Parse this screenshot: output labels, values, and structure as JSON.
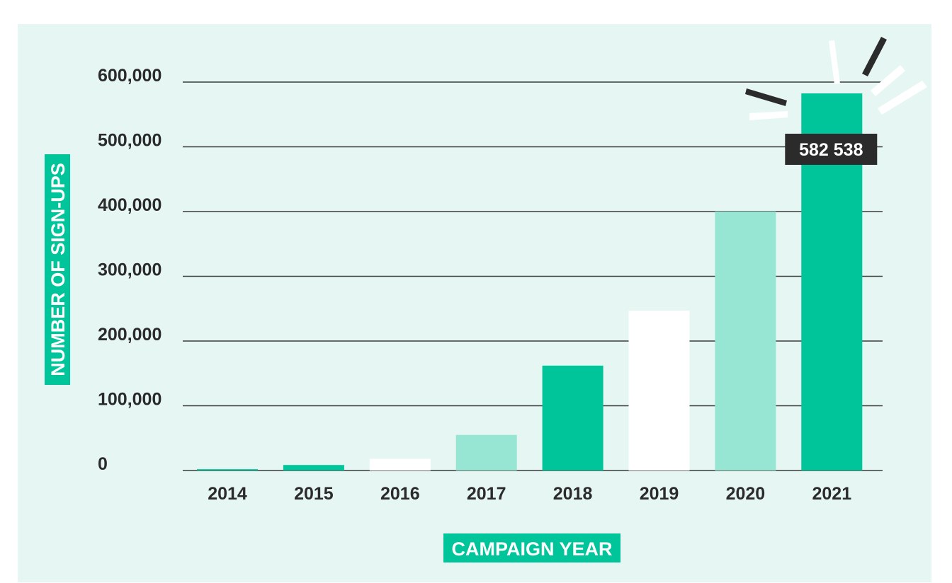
{
  "chart_data": {
    "type": "bar",
    "categories": [
      "2014",
      "2015",
      "2016",
      "2017",
      "2018",
      "2019",
      "2020",
      "2021"
    ],
    "values": [
      2000,
      8500,
      18000,
      55000,
      162000,
      247000,
      400000,
      582538
    ],
    "xlabel": "CAMPAIGN YEAR",
    "ylabel": "NUMBER OF SIGN-UPS",
    "ylim": [
      0,
      600000
    ],
    "yticks": [
      0,
      100000,
      200000,
      300000,
      400000,
      500000,
      600000
    ],
    "ytick_labels": [
      "0",
      "100,000",
      "200,000",
      "300,000",
      "400,000",
      "500,000",
      "600,000"
    ],
    "grid": true,
    "bar_colors": [
      "#00c49a",
      "#00c49a",
      "#ffffff",
      "#97e6d4",
      "#00c49a",
      "#ffffff",
      "#97e6d4",
      "#00c49a"
    ],
    "annotations": [
      {
        "category": "2021",
        "text": "582 538"
      }
    ]
  },
  "colors": {
    "background": "#e6f7f3",
    "gridline": "#3a3a3a",
    "text": "#2b2b2b",
    "label_box": "#00c49a",
    "callout_box": "#2b2b2b"
  }
}
